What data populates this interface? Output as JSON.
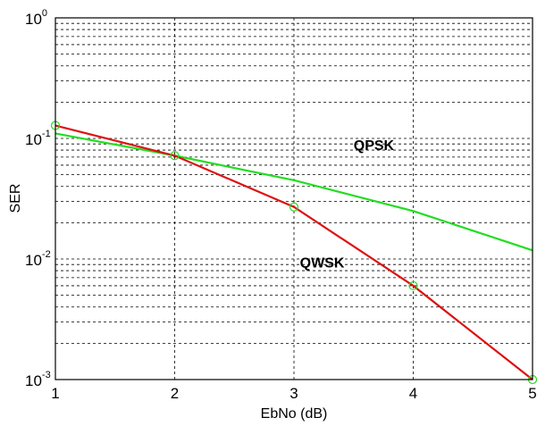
{
  "chart_data": {
    "type": "line",
    "title": "",
    "xlabel": "EbNo (dB)",
    "ylabel": "SER",
    "xlim": [
      1,
      5
    ],
    "ylim": [
      0.001,
      1
    ],
    "yscale": "log",
    "grid": true,
    "x_ticks": [
      "1",
      "2",
      "3",
      "4",
      "5"
    ],
    "y_ticks": [
      {
        "base": "10",
        "exp": "0",
        "value": 1
      },
      {
        "base": "10",
        "exp": "-1",
        "value": 0.1
      },
      {
        "base": "10",
        "exp": "-2",
        "value": 0.01
      },
      {
        "base": "10",
        "exp": "-3",
        "value": 0.001
      }
    ],
    "series": [
      {
        "name": "QPSK",
        "color": "#22dd22",
        "x": [
          1,
          2,
          3,
          4,
          5
        ],
        "y": [
          0.11,
          0.072,
          0.045,
          0.025,
          0.0118
        ],
        "markers": false
      },
      {
        "name": "QWSK",
        "color": "#dd1111",
        "x": [
          1,
          2,
          3,
          4,
          5
        ],
        "y": [
          0.128,
          0.072,
          0.027,
          0.006,
          0.001
        ],
        "markers": true,
        "marker_color": "#22dd22"
      }
    ],
    "annotations": [
      {
        "text": "QPSK",
        "x": 3.5,
        "y": 0.08
      },
      {
        "text": "QWSK",
        "x": 3.05,
        "y": 0.0085
      }
    ]
  }
}
